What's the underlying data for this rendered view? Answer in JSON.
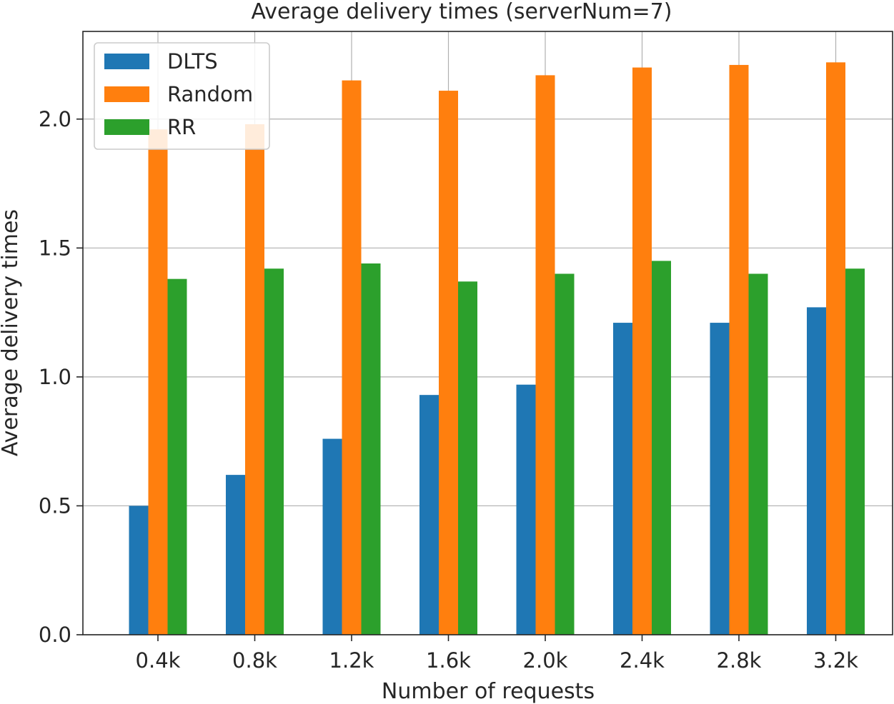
{
  "chart_data": {
    "type": "bar",
    "title": "Average delivery times (serverNum=7)",
    "xlabel": "Number of requests",
    "ylabel": "Average delivery times",
    "categories": [
      "0.4k",
      "0.8k",
      "1.2k",
      "1.6k",
      "2.0k",
      "2.4k",
      "2.8k",
      "3.2k"
    ],
    "series": [
      {
        "name": "DLTS",
        "color": "#1f77b4",
        "values": [
          0.5,
          0.62,
          0.76,
          0.93,
          0.97,
          1.21,
          1.21,
          1.27
        ]
      },
      {
        "name": "Random",
        "color": "#ff7f0e",
        "values": [
          1.96,
          1.98,
          2.15,
          2.11,
          2.17,
          2.2,
          2.21,
          2.22
        ]
      },
      {
        "name": "RR",
        "color": "#2ca02c",
        "values": [
          1.38,
          1.42,
          1.44,
          1.37,
          1.4,
          1.45,
          1.4,
          1.42
        ]
      }
    ],
    "ylim": [
      0,
      2.34
    ],
    "yticks": [
      "0.0",
      "0.5",
      "1.0",
      "1.5",
      "2.0"
    ],
    "grid": true,
    "legend_position": "top-left"
  }
}
